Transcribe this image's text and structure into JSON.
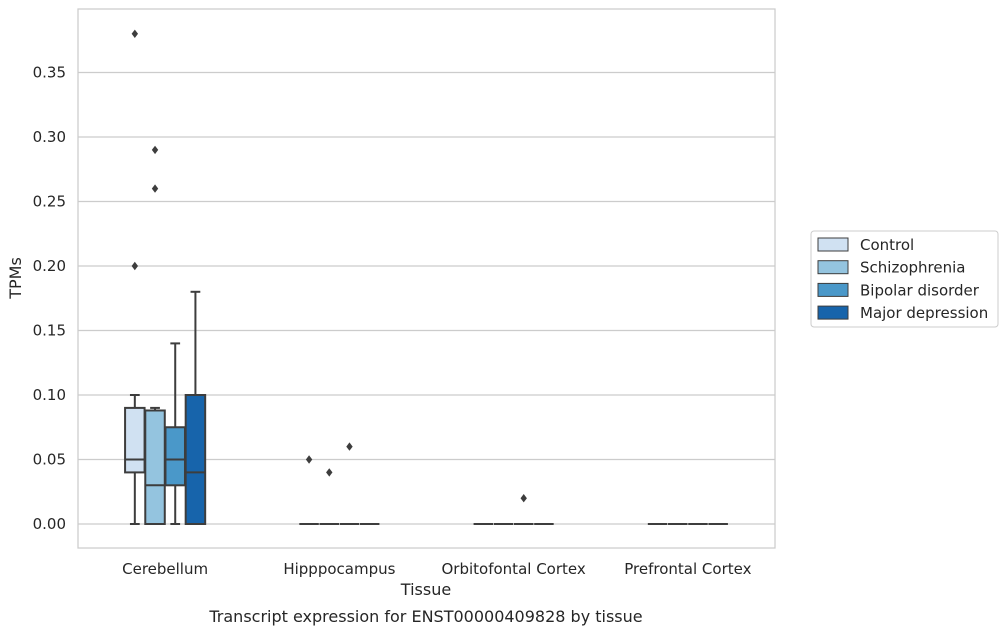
{
  "chart_data": {
    "type": "box",
    "caption": "Transcript expression for ENST00000409828 by tissue",
    "xlabel": "Tissue",
    "ylabel": "TPMs",
    "ylim": [
      -0.018,
      0.398
    ],
    "yticks": [
      0.0,
      0.05,
      0.1,
      0.15,
      0.2,
      0.25,
      0.3,
      0.35
    ],
    "ytick_labels": [
      "0.00",
      "0.05",
      "0.10",
      "0.15",
      "0.20",
      "0.25",
      "0.30",
      "0.35"
    ],
    "grid": "horizontal",
    "categories": [
      "Cerebellum",
      "Hipppocampus",
      "Orbitofontal Cortex",
      "Prefrontal Cortex"
    ],
    "legend": {
      "placement": "right",
      "entries": [
        {
          "label": "Control",
          "color": "#d0e1f2"
        },
        {
          "label": "Schizophrenia",
          "color": "#94c4df"
        },
        {
          "label": "Bipolar disorder",
          "color": "#4a98c9"
        },
        {
          "label": "Major depression",
          "color": "#1764ab"
        }
      ]
    },
    "boxes": [
      [
        {
          "group": "Control",
          "q1": 0.04,
          "median": 0.05,
          "q3": 0.09,
          "whisker_low": 0.0,
          "whisker_high": 0.1,
          "outliers": [
            0.2,
            0.38
          ]
        },
        {
          "group": "Schizophrenia",
          "q1": 0.0,
          "median": 0.03,
          "q3": 0.088,
          "whisker_low": 0.0,
          "whisker_high": 0.09,
          "outliers": [
            0.26,
            0.29
          ]
        },
        {
          "group": "Bipolar disorder",
          "q1": 0.03,
          "median": 0.05,
          "q3": 0.075,
          "whisker_low": 0.0,
          "whisker_high": 0.14,
          "outliers": []
        },
        {
          "group": "Major depression",
          "q1": 0.0,
          "median": 0.04,
          "q3": 0.1,
          "whisker_low": 0.0,
          "whisker_high": 0.18,
          "outliers": []
        }
      ],
      [
        {
          "group": "Control",
          "q1": 0.0,
          "median": 0.0,
          "q3": 0.0,
          "whisker_low": 0.0,
          "whisker_high": 0.0,
          "outliers": [
            0.05
          ]
        },
        {
          "group": "Schizophrenia",
          "q1": 0.0,
          "median": 0.0,
          "q3": 0.0,
          "whisker_low": 0.0,
          "whisker_high": 0.0,
          "outliers": [
            0.04
          ]
        },
        {
          "group": "Bipolar disorder",
          "q1": 0.0,
          "median": 0.0,
          "q3": 0.0,
          "whisker_low": 0.0,
          "whisker_high": 0.0,
          "outliers": [
            0.06
          ]
        },
        {
          "group": "Major depression",
          "q1": 0.0,
          "median": 0.0,
          "q3": 0.0,
          "whisker_low": 0.0,
          "whisker_high": 0.0,
          "outliers": []
        }
      ],
      [
        {
          "group": "Control",
          "q1": 0.0,
          "median": 0.0,
          "q3": 0.0,
          "whisker_low": 0.0,
          "whisker_high": 0.0,
          "outliers": []
        },
        {
          "group": "Schizophrenia",
          "q1": 0.0,
          "median": 0.0,
          "q3": 0.0,
          "whisker_low": 0.0,
          "whisker_high": 0.0,
          "outliers": []
        },
        {
          "group": "Bipolar disorder",
          "q1": 0.0,
          "median": 0.0,
          "q3": 0.0,
          "whisker_low": 0.0,
          "whisker_high": 0.0,
          "outliers": [
            0.02
          ]
        },
        {
          "group": "Major depression",
          "q1": 0.0,
          "median": 0.0,
          "q3": 0.0,
          "whisker_low": 0.0,
          "whisker_high": 0.0,
          "outliers": []
        }
      ],
      [
        {
          "group": "Control",
          "q1": 0.0,
          "median": 0.0,
          "q3": 0.0,
          "whisker_low": 0.0,
          "whisker_high": 0.0,
          "outliers": []
        },
        {
          "group": "Schizophrenia",
          "q1": 0.0,
          "median": 0.0,
          "q3": 0.0,
          "whisker_low": 0.0,
          "whisker_high": 0.0,
          "outliers": []
        },
        {
          "group": "Bipolar disorder",
          "q1": 0.0,
          "median": 0.0,
          "q3": 0.0,
          "whisker_low": 0.0,
          "whisker_high": 0.0,
          "outliers": []
        },
        {
          "group": "Major depression",
          "q1": 0.0,
          "median": 0.0,
          "q3": 0.0,
          "whisker_low": 0.0,
          "whisker_high": 0.0,
          "outliers": []
        }
      ]
    ]
  }
}
